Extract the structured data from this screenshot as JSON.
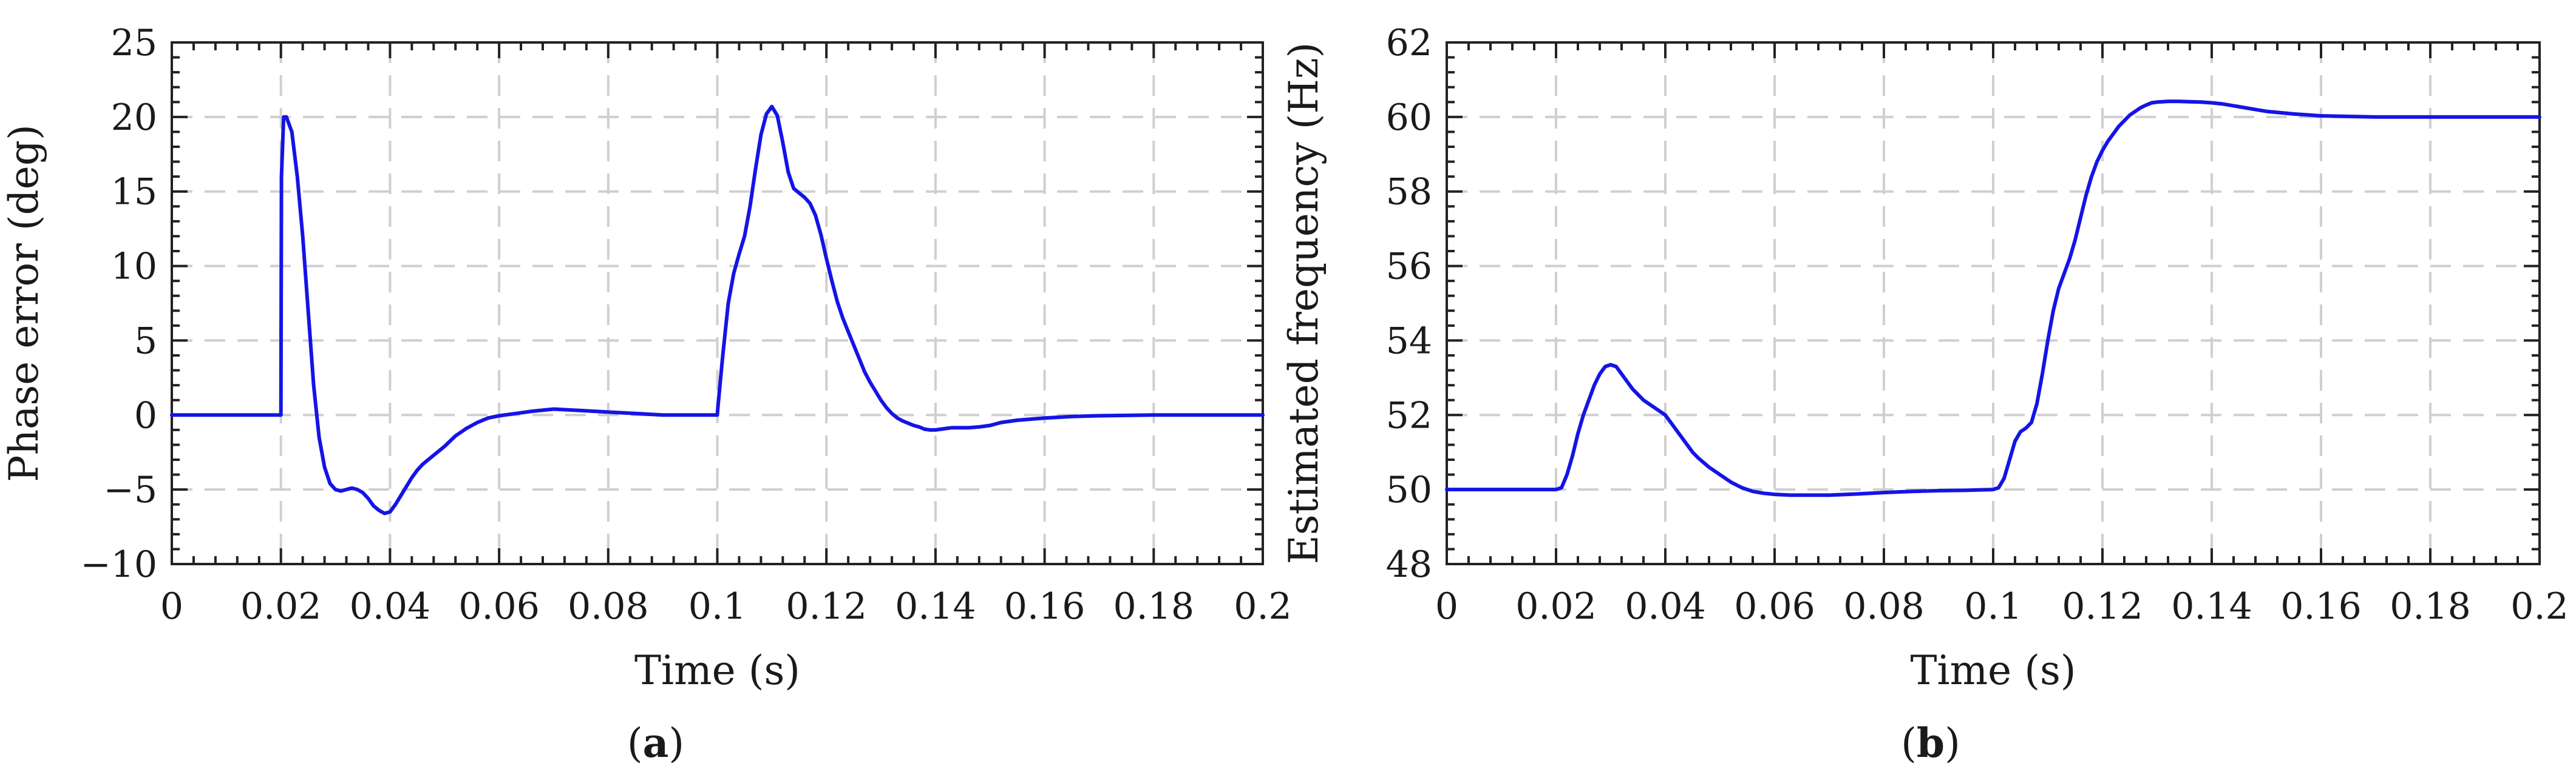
{
  "line_color": "#1414e6",
  "grid_color": "#cfcfcf",
  "chart_data": [
    {
      "type": "line",
      "panel_label": "a",
      "xlabel": "Time (s)",
      "ylabel": "Phase error (deg)",
      "xlim": [
        0,
        0.2
      ],
      "ylim": [
        -10,
        25
      ],
      "xticks": [
        0,
        0.02,
        0.04,
        0.06,
        0.08,
        0.1,
        0.12,
        0.14,
        0.16,
        0.18,
        0.2
      ],
      "xtick_labels": [
        "0",
        "0.02",
        "0.04",
        "0.06",
        "0.08",
        "0.1",
        "0.12",
        "0.14",
        "0.16",
        "0.18",
        "0.2"
      ],
      "yticks": [
        -10,
        -5,
        0,
        5,
        10,
        15,
        20,
        25
      ],
      "ytick_labels": [
        "−10",
        "−5",
        "0",
        "5",
        "10",
        "15",
        "20",
        "25"
      ],
      "grid": true,
      "series": [
        {
          "x": [
            0,
            0.02,
            0.0201,
            0.0205,
            0.021,
            0.022,
            0.023,
            0.024,
            0.025,
            0.026,
            0.027,
            0.028,
            0.029,
            0.03,
            0.031,
            0.032,
            0.033,
            0.034,
            0.035,
            0.036,
            0.037,
            0.038,
            0.039,
            0.04,
            0.041,
            0.042,
            0.043,
            0.044,
            0.045,
            0.046,
            0.048,
            0.05,
            0.052,
            0.054,
            0.056,
            0.058,
            0.06,
            0.063,
            0.066,
            0.07,
            0.075,
            0.08,
            0.085,
            0.09,
            0.095,
            0.1,
            0.1001,
            0.101,
            0.102,
            0.103,
            0.104,
            0.105,
            0.106,
            0.107,
            0.108,
            0.109,
            0.11,
            0.111,
            0.112,
            0.113,
            0.114,
            0.115,
            0.116,
            0.117,
            0.118,
            0.119,
            0.12,
            0.121,
            0.122,
            0.123,
            0.124,
            0.125,
            0.126,
            0.127,
            0.128,
            0.129,
            0.13,
            0.131,
            0.132,
            0.133,
            0.134,
            0.135,
            0.136,
            0.137,
            0.138,
            0.139,
            0.14,
            0.141,
            0.142,
            0.143,
            0.144,
            0.145,
            0.146,
            0.148,
            0.15,
            0.152,
            0.155,
            0.16,
            0.165,
            0.17,
            0.18,
            0.19,
            0.2
          ],
          "y": [
            0,
            0,
            16,
            20,
            20,
            19,
            16,
            12,
            7,
            2,
            -1.5,
            -3.5,
            -4.6,
            -5,
            -5.1,
            -5,
            -4.9,
            -5,
            -5.2,
            -5.6,
            -6.1,
            -6.4,
            -6.6,
            -6.5,
            -6,
            -5.4,
            -4.8,
            -4.2,
            -3.7,
            -3.3,
            -2.7,
            -2.1,
            -1.4,
            -0.9,
            -0.5,
            -0.2,
            -0.05,
            0.1,
            0.25,
            0.4,
            0.3,
            0.2,
            0.1,
            0,
            0,
            0,
            0.5,
            4,
            7.5,
            9.5,
            10.8,
            12,
            14,
            16.5,
            18.8,
            20.2,
            20.7,
            20.1,
            18.3,
            16.3,
            15.2,
            14.9,
            14.6,
            14.2,
            13.4,
            12.1,
            10.5,
            9,
            7.6,
            6.5,
            5.6,
            4.7,
            3.8,
            2.9,
            2.2,
            1.6,
            1,
            0.5,
            0.1,
            -0.2,
            -0.4,
            -0.55,
            -0.7,
            -0.8,
            -0.95,
            -1,
            -1,
            -0.95,
            -0.9,
            -0.85,
            -0.85,
            -0.85,
            -0.85,
            -0.8,
            -0.7,
            -0.5,
            -0.35,
            -0.2,
            -0.1,
            -0.05,
            0,
            0,
            0
          ]
        }
      ]
    },
    {
      "type": "line",
      "panel_label": "b",
      "xlabel": "Time (s)",
      "ylabel": "Estimated frequency (Hz)",
      "xlim": [
        0,
        0.2
      ],
      "ylim": [
        48,
        62
      ],
      "xticks": [
        0,
        0.02,
        0.04,
        0.06,
        0.08,
        0.1,
        0.12,
        0.14,
        0.16,
        0.18,
        0.2
      ],
      "xtick_labels": [
        "0",
        "0.02",
        "0.04",
        "0.06",
        "0.08",
        "0.1",
        "0.12",
        "0.14",
        "0.16",
        "0.18",
        "0.2"
      ],
      "yticks": [
        48,
        50,
        52,
        54,
        56,
        58,
        60,
        62
      ],
      "ytick_labels": [
        "48",
        "50",
        "52",
        "54",
        "56",
        "58",
        "60",
        "62"
      ],
      "grid": true,
      "series": [
        {
          "x": [
            0,
            0.02,
            0.021,
            0.022,
            0.023,
            0.024,
            0.025,
            0.026,
            0.027,
            0.028,
            0.029,
            0.03,
            0.031,
            0.032,
            0.033,
            0.034,
            0.035,
            0.036,
            0.037,
            0.038,
            0.039,
            0.04,
            0.041,
            0.042,
            0.043,
            0.044,
            0.045,
            0.046,
            0.048,
            0.05,
            0.052,
            0.054,
            0.056,
            0.058,
            0.06,
            0.063,
            0.066,
            0.07,
            0.075,
            0.08,
            0.085,
            0.09,
            0.095,
            0.1,
            0.101,
            0.102,
            0.103,
            0.104,
            0.105,
            0.106,
            0.107,
            0.108,
            0.109,
            0.11,
            0.111,
            0.112,
            0.113,
            0.114,
            0.115,
            0.116,
            0.117,
            0.118,
            0.119,
            0.12,
            0.121,
            0.122,
            0.123,
            0.124,
            0.125,
            0.126,
            0.127,
            0.128,
            0.129,
            0.13,
            0.132,
            0.134,
            0.136,
            0.138,
            0.14,
            0.142,
            0.144,
            0.146,
            0.148,
            0.15,
            0.155,
            0.16,
            0.17,
            0.18,
            0.19,
            0.2
          ],
          "y": [
            50,
            50,
            50.05,
            50.4,
            50.9,
            51.5,
            52,
            52.4,
            52.8,
            53.1,
            53.3,
            53.35,
            53.3,
            53.1,
            52.9,
            52.7,
            52.55,
            52.4,
            52.3,
            52.2,
            52.1,
            52,
            51.8,
            51.6,
            51.4,
            51.2,
            51,
            50.85,
            50.6,
            50.4,
            50.2,
            50.05,
            49.95,
            49.9,
            49.87,
            49.85,
            49.85,
            49.85,
            49.88,
            49.92,
            49.95,
            49.97,
            49.98,
            50,
            50.05,
            50.3,
            50.8,
            51.3,
            51.55,
            51.65,
            51.8,
            52.3,
            53.1,
            54,
            54.8,
            55.4,
            55.8,
            56.2,
            56.7,
            57.3,
            57.9,
            58.4,
            58.8,
            59.1,
            59.35,
            59.55,
            59.75,
            59.9,
            60.05,
            60.15,
            60.25,
            60.32,
            60.38,
            60.4,
            60.42,
            60.42,
            60.41,
            60.4,
            60.38,
            60.35,
            60.3,
            60.25,
            60.2,
            60.15,
            60.08,
            60.03,
            60,
            60,
            60,
            60
          ]
        }
      ]
    }
  ]
}
